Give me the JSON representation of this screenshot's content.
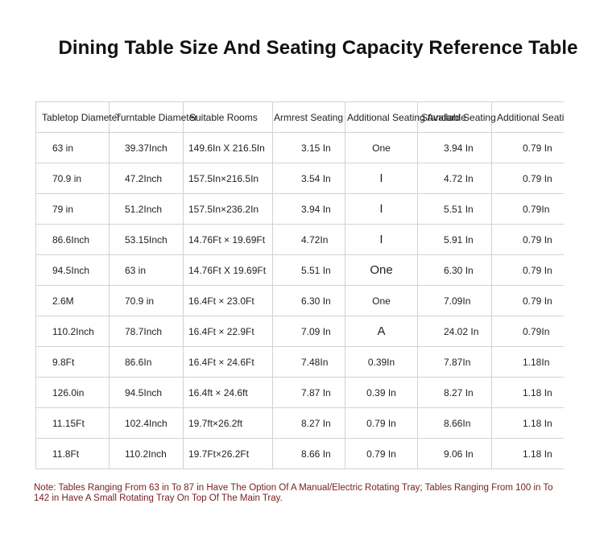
{
  "title": "Dining Table Size And Seating Capacity Reference Table",
  "table": {
    "headers": [
      "Tabletop Diameter",
      "Turntable Diameter",
      "Suitable Rooms",
      "Armrest Seating",
      "Additional Seating Available",
      "Standard Seating",
      "Additional Seating Available"
    ],
    "rows": [
      [
        "63 in",
        "39.37Inch",
        "149.6In X 216.5In",
        "3.15 In",
        "One",
        "3.94 In",
        "0.79 In"
      ],
      [
        "70.9 in",
        "47.2Inch",
        "157.5In×216.5In",
        "3.54 In",
        "I",
        "4.72 In",
        "0.79 In"
      ],
      [
        "79 in",
        "51.2Inch",
        "157.5In×236.2In",
        "3.94 In",
        "I",
        "5.51 In",
        "0.79In"
      ],
      [
        "86.6Inch",
        "53.15Inch",
        "14.76Ft × 19.69Ft",
        "4.72In",
        "I",
        "5.91 In",
        "0.79 In"
      ],
      [
        "94.5Inch",
        "63 in",
        "14.76Ft X 19.69Ft",
        "5.51 In",
        "One",
        "6.30 In",
        "0.79 In"
      ],
      [
        "2.6M",
        "70.9 in",
        "16.4Ft × 23.0Ft",
        "6.30 In",
        "One",
        "7.09In",
        "0.79 In"
      ],
      [
        "110.2Inch",
        "78.7Inch",
        "16.4Ft × 22.9Ft",
        "7.09 In",
        "A",
        "24.02 In",
        "0.79In"
      ],
      [
        "9.8Ft",
        "86.6In",
        "16.4Ft × 24.6Ft",
        "7.48In",
        "0.39In",
        "7.87In",
        "1.18In"
      ],
      [
        "126.0in",
        "94.5Inch",
        "16.4ft × 24.6ft",
        "7.87 In",
        "0.39 In",
        "8.27 In",
        "1.18 In"
      ],
      [
        "11.15Ft",
        "102.4Inch",
        "19.7ft×26.2ft",
        "8.27 In",
        "0.79 In",
        "8.66In",
        "1.18 In"
      ],
      [
        "11.8Ft",
        "110.2Inch",
        "19.7Ft×26.2Ft",
        "8.66 In",
        "0.79 In",
        "9.06 In",
        "1.18 In"
      ]
    ]
  },
  "note": "Note: Tables Ranging From 63 in To 87 in Have The Option Of A Manual/Electric Rotating Tray; Tables Ranging From 100 in To 142 in Have A Small Rotating Tray On Top Of The Main Tray."
}
